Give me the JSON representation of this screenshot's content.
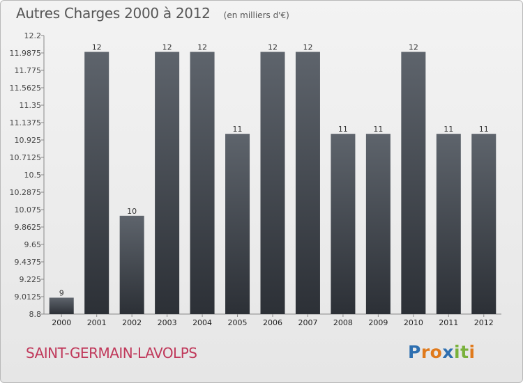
{
  "title": "Autres Charges 2000 à 2012",
  "unit_note": "(en milliers d'€)",
  "commune": "SAINT-GERMAIN-LAVOLPS",
  "logo": {
    "letters": [
      "P",
      "r",
      "o",
      "x",
      "i",
      "t",
      "i"
    ],
    "colors": [
      "#2e6fb0",
      "#e07a1c",
      "#e07a1c",
      "#2e6fb0",
      "#79b13b",
      "#79b13b",
      "#e07a1c"
    ]
  },
  "chart_data": {
    "type": "bar",
    "title": "Autres Charges 2000 à 2012",
    "subtitle": "(en milliers d'€)",
    "categories": [
      "2000",
      "2001",
      "2002",
      "2003",
      "2004",
      "2005",
      "2006",
      "2007",
      "2008",
      "2009",
      "2010",
      "2011",
      "2012"
    ],
    "values": [
      9,
      12,
      10,
      12,
      12,
      11,
      12,
      12,
      11,
      11,
      12,
      11,
      11
    ],
    "value_labels": [
      "9",
      "12",
      "10",
      "12",
      "12",
      "11",
      "12",
      "12",
      "11",
      "11",
      "12",
      "11",
      "11"
    ],
    "ylim": [
      8.8,
      12.2
    ],
    "yticks": [
      "12.2",
      "11.9875",
      "11.775",
      "11.5625",
      "11.35",
      "11.1375",
      "10.925",
      "10.7125",
      "10.5",
      "10.2875",
      "10.075",
      "9.8625",
      "9.65",
      "9.4375",
      "9.225",
      "9.0125",
      "8.8"
    ],
    "grid": false,
    "bar_color": "#4a5058"
  }
}
